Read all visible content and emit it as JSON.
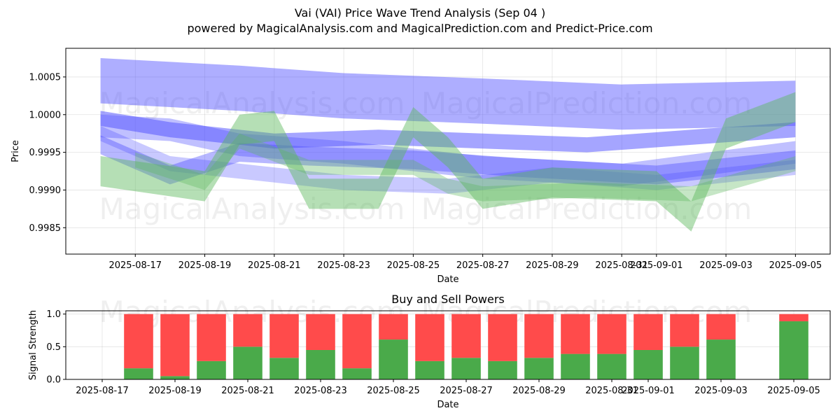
{
  "title": "Vai (VAI) Price Wave Trend Analysis (Sep 04 )",
  "subtitle": "powered by MagicalAnalysis.com and MagicalPrediction.com and Predict-Price.com",
  "watermarks": [
    "MagicalAnalysis.com",
    "MagicalPrediction.com"
  ],
  "colors": {
    "green": "#4aaa4a",
    "red": "#ff4b4b",
    "wave_blue": "#4b4bff",
    "wave_green": "#5cb85c"
  },
  "chart_data": [
    {
      "type": "area",
      "xlabel": "Date",
      "ylabel": "Price",
      "xlim": [
        "2025-08-15",
        "2025-09-06"
      ],
      "ylim": [
        0.99815,
        1.00088
      ],
      "yticks": [
        0.9985,
        0.999,
        0.9995,
        1.0,
        1.0005
      ],
      "ytick_labels": [
        "0.9985",
        "0.9990",
        "0.9995",
        "1.0000",
        "1.0005"
      ],
      "xticks": [
        "2025-08-17",
        "2025-08-19",
        "2025-08-21",
        "2025-08-23",
        "2025-08-25",
        "2025-08-27",
        "2025-08-29",
        "2025-08-31",
        "2025-09-01",
        "2025-09-03",
        "2025-09-05"
      ],
      "grid": true,
      "series": [
        {
          "color": "blue",
          "alpha": 0.45,
          "points": [
            [
              "2025-08-16",
              1.00045
            ],
            [
              "2025-08-20",
              1.00035
            ],
            [
              "2025-08-23",
              1.00025
            ],
            [
              "2025-08-27",
              1.00018
            ],
            [
              "2025-08-31",
              1.0001
            ],
            [
              "2025-09-05",
              1.00015
            ]
          ],
          "band": 0.0006
        },
        {
          "color": "blue",
          "alpha": 0.35,
          "points": [
            [
              "2025-08-16",
              0.99985
            ],
            [
              "2025-08-18",
              0.9998
            ],
            [
              "2025-08-20",
              0.9996
            ],
            [
              "2025-08-23",
              0.9995
            ],
            [
              "2025-08-27",
              0.9993
            ],
            [
              "2025-08-31",
              0.9992
            ],
            [
              "2025-09-05",
              0.9995
            ]
          ],
          "band": 0.0003
        },
        {
          "color": "blue",
          "alpha": 0.3,
          "points": [
            [
              "2025-08-16",
              0.99975
            ],
            [
              "2025-08-18",
              0.99935
            ],
            [
              "2025-08-20",
              0.99925
            ],
            [
              "2025-08-23",
              0.9991
            ],
            [
              "2025-08-26",
              0.99905
            ],
            [
              "2025-08-29",
              0.9992
            ],
            [
              "2025-09-01",
              0.9991
            ],
            [
              "2025-09-05",
              0.9993
            ]
          ],
          "band": 0.0002
        },
        {
          "color": "blue",
          "alpha": 0.5,
          "points": [
            [
              "2025-08-16",
              0.99995
            ],
            [
              "2025-08-18",
              0.9998
            ],
            [
              "2025-08-21",
              0.99965
            ],
            [
              "2025-08-24",
              0.9997
            ],
            [
              "2025-08-27",
              0.99965
            ],
            [
              "2025-08-30",
              0.9996
            ],
            [
              "2025-09-05",
              0.9998
            ]
          ],
          "band": 0.0002
        },
        {
          "color": "blue",
          "alpha": 0.4,
          "points": [
            [
              "2025-08-16",
              0.9996
            ],
            [
              "2025-08-18",
              0.9992
            ],
            [
              "2025-08-20",
              0.9995
            ],
            [
              "2025-08-22",
              0.99945
            ],
            [
              "2025-08-25",
              0.9994
            ],
            [
              "2025-08-28",
              0.9993
            ],
            [
              "2025-09-01",
              0.9992
            ],
            [
              "2025-09-05",
              0.9994
            ]
          ],
          "band": 0.00025
        },
        {
          "color": "green",
          "alpha": 0.45,
          "points": [
            [
              "2025-08-16",
              0.99925
            ],
            [
              "2025-08-19",
              0.99905
            ],
            [
              "2025-08-20",
              0.9998
            ],
            [
              "2025-08-21",
              0.99985
            ],
            [
              "2025-08-22",
              0.99895
            ],
            [
              "2025-08-24",
              0.99895
            ],
            [
              "2025-08-25",
              0.9999
            ],
            [
              "2025-08-26",
              0.9995
            ],
            [
              "2025-08-27",
              0.99895
            ],
            [
              "2025-08-29",
              0.9991
            ],
            [
              "2025-09-01",
              0.99905
            ],
            [
              "2025-09-02",
              0.99865
            ],
            [
              "2025-09-03",
              0.99975
            ],
            [
              "2025-09-05",
              1.0001
            ]
          ],
          "band": 0.0004
        },
        {
          "color": "green",
          "alpha": 0.35,
          "points": [
            [
              "2025-08-17",
              0.9994
            ],
            [
              "2025-08-19",
              0.9991
            ],
            [
              "2025-08-20",
              0.99965
            ],
            [
              "2025-08-22",
              0.9993
            ],
            [
              "2025-08-25",
              0.9993
            ],
            [
              "2025-08-26",
              0.99905
            ],
            [
              "2025-08-27",
              0.99895
            ],
            [
              "2025-08-30",
              0.999
            ],
            [
              "2025-09-02",
              0.99895
            ],
            [
              "2025-09-05",
              0.99935
            ]
          ],
          "band": 0.0002
        }
      ]
    },
    {
      "type": "bar",
      "title": "Buy and Sell Powers",
      "xlabel": "Date",
      "ylabel": "Signal Strength",
      "ylim": [
        0,
        1.05
      ],
      "yticks": [
        0.0,
        0.5,
        1.0
      ],
      "ytick_labels": [
        "0.0",
        "0.5",
        "1.0"
      ],
      "xticks": [
        "2025-08-17",
        "2025-08-19",
        "2025-08-21",
        "2025-08-23",
        "2025-08-25",
        "2025-08-27",
        "2025-08-29",
        "2025-08-31",
        "2025-09-01",
        "2025-09-03",
        "2025-09-05"
      ],
      "grid": true,
      "categories": [
        "2025-08-18",
        "2025-08-19",
        "2025-08-20",
        "2025-08-21",
        "2025-08-22",
        "2025-08-23",
        "2025-08-24",
        "2025-08-25",
        "2025-08-26",
        "2025-08-27",
        "2025-08-28",
        "2025-08-29",
        "2025-08-30",
        "2025-08-31",
        "2025-09-01",
        "2025-09-02",
        "2025-09-03",
        "2025-09-05"
      ],
      "series": [
        {
          "color": "green",
          "values": [
            0.17,
            0.05,
            0.28,
            0.5,
            0.33,
            0.45,
            0.17,
            0.61,
            0.28,
            0.33,
            0.28,
            0.33,
            0.39,
            0.39,
            0.45,
            0.5,
            0.61,
            0.89
          ]
        },
        {
          "color": "red",
          "values": [
            0.83,
            0.95,
            0.72,
            0.5,
            0.67,
            0.55,
            0.83,
            0.39,
            0.72,
            0.67,
            0.72,
            0.67,
            0.61,
            0.61,
            0.55,
            0.5,
            0.39,
            0.11
          ]
        }
      ]
    }
  ]
}
